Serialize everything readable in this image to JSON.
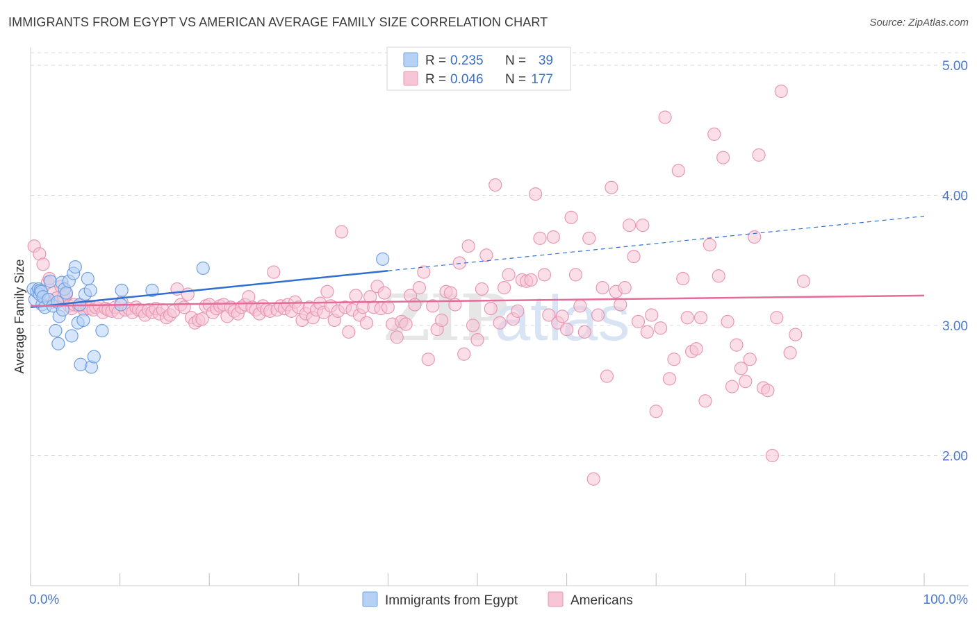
{
  "title": "IMMIGRANTS FROM EGYPT VS AMERICAN AVERAGE FAMILY SIZE CORRELATION CHART",
  "source": "Source: ZipAtlas.com",
  "watermark": "ZIPatlas",
  "colors": {
    "blue": "#6f9fe0",
    "blue_fill": "#b7d1f5",
    "blue_line": "#2f6fd0",
    "pink": "#e896b4",
    "pink_fill": "#f7c5d6",
    "pink_line": "#e56b98",
    "tick": "#4a78c8",
    "grid": "#d9d9d9"
  },
  "legend": {
    "r_label": "R =",
    "n_label": "N =",
    "rows": [
      {
        "series": "blue",
        "r": "0.235",
        "n": "39"
      },
      {
        "series": "pink",
        "r": "0.046",
        "n": "177"
      }
    ]
  },
  "chart_data": {
    "type": "scatter",
    "title": "IMMIGRANTS FROM EGYPT VS AMERICAN AVERAGE FAMILY SIZE CORRELATION CHART",
    "xlabel": "",
    "ylabel": "Average Family Size",
    "xlim": [
      0,
      100
    ],
    "ylim": [
      1.0,
      5.0
    ],
    "x_tick_labels": [
      "0.0%",
      "100.0%"
    ],
    "y_ticks": [
      2.0,
      3.0,
      4.0,
      5.0
    ],
    "y_tick_labels": [
      "2.00",
      "3.00",
      "4.00",
      "5.00"
    ],
    "grid": true,
    "legend_position": "top-center",
    "series": [
      {
        "name": "Immigrants from Egypt",
        "color": "blue",
        "trend": {
          "x0": 0,
          "y0": 3.14,
          "x1": 40,
          "y1": 3.42,
          "dashed_to_x": 100,
          "dashed_to_y": 3.84
        },
        "points": [
          [
            0.3,
            3.28
          ],
          [
            0.5,
            3.2
          ],
          [
            0.7,
            3.26
          ],
          [
            0.9,
            3.28
          ],
          [
            1.0,
            3.24
          ],
          [
            1.1,
            3.27
          ],
          [
            1.2,
            3.26
          ],
          [
            1.3,
            3.16
          ],
          [
            1.4,
            3.22
          ],
          [
            1.6,
            3.14
          ],
          [
            2.0,
            3.2
          ],
          [
            2.2,
            3.34
          ],
          [
            2.5,
            3.15
          ],
          [
            2.8,
            2.96
          ],
          [
            3.0,
            3.18
          ],
          [
            3.1,
            2.86
          ],
          [
            3.2,
            3.07
          ],
          [
            3.5,
            3.33
          ],
          [
            3.6,
            3.12
          ],
          [
            3.8,
            3.28
          ],
          [
            4.0,
            3.25
          ],
          [
            4.3,
            3.34
          ],
          [
            4.6,
            2.92
          ],
          [
            4.8,
            3.4
          ],
          [
            5.0,
            3.45
          ],
          [
            5.3,
            3.02
          ],
          [
            5.5,
            3.16
          ],
          [
            5.6,
            2.7
          ],
          [
            5.9,
            3.04
          ],
          [
            6.1,
            3.24
          ],
          [
            6.4,
            3.36
          ],
          [
            6.7,
            3.27
          ],
          [
            6.8,
            2.68
          ],
          [
            7.1,
            2.76
          ],
          [
            8.0,
            2.96
          ],
          [
            10.1,
            3.16
          ],
          [
            10.2,
            3.27
          ],
          [
            13.6,
            3.27
          ],
          [
            19.3,
            3.44
          ],
          [
            39.4,
            3.51
          ]
        ]
      },
      {
        "name": "Americans",
        "color": "pink",
        "trend": {
          "x0": 0,
          "y0": 3.15,
          "x1": 100,
          "y1": 3.23
        },
        "points": [
          [
            0.4,
            3.61
          ],
          [
            1.0,
            3.55
          ],
          [
            1.4,
            3.47
          ],
          [
            1.9,
            3.33
          ],
          [
            2.1,
            3.36
          ],
          [
            2.4,
            3.18
          ],
          [
            2.6,
            3.25
          ],
          [
            2.9,
            3.21
          ],
          [
            3.4,
            3.3
          ],
          [
            3.7,
            3.22
          ],
          [
            4.0,
            3.24
          ],
          [
            4.3,
            3.15
          ],
          [
            4.6,
            3.13
          ],
          [
            4.9,
            3.16
          ],
          [
            5.4,
            3.15
          ],
          [
            5.7,
            3.15
          ],
          [
            6.0,
            3.12
          ],
          [
            6.3,
            3.15
          ],
          [
            6.6,
            3.13
          ],
          [
            7.0,
            3.12
          ],
          [
            7.3,
            3.14
          ],
          [
            7.7,
            3.15
          ],
          [
            8.1,
            3.1
          ],
          [
            8.4,
            3.13
          ],
          [
            8.7,
            3.12
          ],
          [
            9.1,
            3.11
          ],
          [
            9.5,
            3.14
          ],
          [
            9.8,
            3.1
          ],
          [
            10.2,
            3.18
          ],
          [
            10.6,
            3.12
          ],
          [
            11.0,
            3.13
          ],
          [
            11.4,
            3.1
          ],
          [
            11.8,
            3.14
          ],
          [
            12.1,
            3.12
          ],
          [
            12.5,
            3.11
          ],
          [
            12.8,
            3.08
          ],
          [
            13.2,
            3.12
          ],
          [
            13.6,
            3.1
          ],
          [
            14.0,
            3.13
          ],
          [
            14.4,
            3.09
          ],
          [
            14.8,
            3.12
          ],
          [
            15.2,
            3.06
          ],
          [
            15.6,
            3.08
          ],
          [
            16.0,
            3.11
          ],
          [
            16.4,
            3.28
          ],
          [
            16.8,
            3.16
          ],
          [
            17.2,
            3.14
          ],
          [
            17.6,
            3.24
          ],
          [
            18.0,
            3.06
          ],
          [
            18.4,
            3.02
          ],
          [
            18.8,
            3.04
          ],
          [
            19.2,
            3.05
          ],
          [
            19.6,
            3.15
          ],
          [
            20.0,
            3.16
          ],
          [
            20.4,
            3.1
          ],
          [
            20.8,
            3.13
          ],
          [
            21.2,
            3.15
          ],
          [
            21.6,
            3.16
          ],
          [
            22.0,
            3.07
          ],
          [
            22.4,
            3.14
          ],
          [
            22.8,
            3.11
          ],
          [
            23.2,
            3.09
          ],
          [
            23.6,
            3.14
          ],
          [
            24.0,
            3.16
          ],
          [
            24.4,
            3.22
          ],
          [
            24.8,
            3.14
          ],
          [
            25.2,
            3.12
          ],
          [
            25.6,
            3.09
          ],
          [
            26.0,
            3.15
          ],
          [
            26.4,
            3.12
          ],
          [
            26.8,
            3.11
          ],
          [
            27.2,
            3.41
          ],
          [
            27.6,
            3.12
          ],
          [
            28.0,
            3.15
          ],
          [
            28.4,
            3.13
          ],
          [
            28.8,
            3.16
          ],
          [
            29.2,
            3.11
          ],
          [
            29.6,
            3.18
          ],
          [
            30.0,
            3.14
          ],
          [
            30.4,
            3.04
          ],
          [
            30.8,
            3.09
          ],
          [
            31.2,
            3.14
          ],
          [
            31.6,
            3.06
          ],
          [
            32.0,
            3.12
          ],
          [
            32.4,
            3.17
          ],
          [
            32.8,
            3.1
          ],
          [
            33.2,
            3.26
          ],
          [
            33.6,
            3.15
          ],
          [
            34.0,
            3.04
          ],
          [
            34.4,
            3.11
          ],
          [
            34.8,
            3.72
          ],
          [
            35.2,
            3.14
          ],
          [
            35.6,
            2.95
          ],
          [
            36.0,
            3.12
          ],
          [
            36.4,
            3.23
          ],
          [
            36.8,
            3.08
          ],
          [
            37.2,
            3.14
          ],
          [
            37.6,
            3.02
          ],
          [
            38.0,
            3.22
          ],
          [
            38.4,
            3.14
          ],
          [
            38.8,
            3.3
          ],
          [
            39.2,
            3.13
          ],
          [
            39.6,
            3.25
          ],
          [
            40.0,
            3.14
          ],
          [
            40.5,
            3.01
          ],
          [
            41.0,
            2.91
          ],
          [
            41.5,
            3.03
          ],
          [
            42.0,
            3.01
          ],
          [
            42.5,
            3.23
          ],
          [
            43.0,
            3.16
          ],
          [
            43.5,
            3.29
          ],
          [
            44.0,
            3.41
          ],
          [
            44.5,
            2.74
          ],
          [
            45.0,
            3.15
          ],
          [
            45.5,
            2.97
          ],
          [
            46.0,
            3.04
          ],
          [
            46.5,
            3.26
          ],
          [
            47.0,
            3.25
          ],
          [
            47.5,
            3.16
          ],
          [
            48.0,
            3.48
          ],
          [
            48.5,
            2.78
          ],
          [
            49.0,
            3.61
          ],
          [
            49.5,
            3.0
          ],
          [
            50.0,
            2.89
          ],
          [
            50.5,
            3.28
          ],
          [
            51.0,
            3.54
          ],
          [
            51.5,
            3.13
          ],
          [
            52.0,
            4.08
          ],
          [
            52.5,
            3.02
          ],
          [
            53.0,
            3.29
          ],
          [
            53.5,
            3.39
          ],
          [
            54.0,
            3.05
          ],
          [
            54.5,
            3.11
          ],
          [
            55.0,
            3.35
          ],
          [
            55.5,
            3.34
          ],
          [
            56.0,
            3.35
          ],
          [
            56.5,
            4.01
          ],
          [
            57.0,
            3.67
          ],
          [
            57.5,
            3.39
          ],
          [
            58.0,
            3.08
          ],
          [
            58.5,
            3.68
          ],
          [
            59.0,
            3.02
          ],
          [
            59.5,
            3.07
          ],
          [
            60.0,
            2.97
          ],
          [
            60.5,
            3.83
          ],
          [
            61.0,
            3.39
          ],
          [
            61.5,
            3.15
          ],
          [
            62.0,
            2.95
          ],
          [
            62.5,
            3.67
          ],
          [
            63.0,
            1.82
          ],
          [
            63.5,
            3.08
          ],
          [
            64.0,
            3.29
          ],
          [
            64.5,
            2.61
          ],
          [
            65.0,
            4.06
          ],
          [
            65.5,
            3.26
          ],
          [
            66.0,
            3.16
          ],
          [
            66.5,
            3.29
          ],
          [
            67.0,
            3.77
          ],
          [
            67.5,
            3.53
          ],
          [
            68.0,
            3.03
          ],
          [
            68.5,
            3.77
          ],
          [
            69.0,
            2.95
          ],
          [
            69.5,
            3.08
          ],
          [
            70.0,
            2.34
          ],
          [
            70.5,
            2.98
          ],
          [
            71.0,
            4.6
          ],
          [
            71.5,
            2.59
          ],
          [
            72.0,
            2.74
          ],
          [
            72.5,
            4.19
          ],
          [
            73.0,
            3.36
          ],
          [
            73.5,
            3.06
          ],
          [
            74.0,
            2.8
          ],
          [
            74.5,
            2.82
          ],
          [
            75.0,
            3.06
          ],
          [
            75.5,
            2.42
          ],
          [
            76.0,
            3.62
          ],
          [
            76.5,
            4.47
          ],
          [
            77.0,
            3.38
          ],
          [
            77.5,
            4.29
          ],
          [
            78.0,
            3.03
          ],
          [
            78.5,
            2.53
          ],
          [
            79.0,
            2.85
          ],
          [
            79.5,
            2.67
          ],
          [
            80.0,
            2.57
          ],
          [
            80.5,
            2.74
          ],
          [
            81.0,
            3.68
          ],
          [
            81.5,
            4.31
          ],
          [
            82.0,
            2.52
          ],
          [
            82.5,
            2.5
          ],
          [
            83.0,
            2.0
          ],
          [
            83.5,
            3.06
          ],
          [
            84.0,
            4.8
          ],
          [
            85.0,
            2.79
          ],
          [
            85.6,
            2.93
          ],
          [
            86.5,
            3.34
          ]
        ]
      }
    ]
  },
  "bottom_legend": [
    {
      "series": "blue",
      "label": "Immigrants from Egypt"
    },
    {
      "series": "pink",
      "label": "Americans"
    }
  ]
}
